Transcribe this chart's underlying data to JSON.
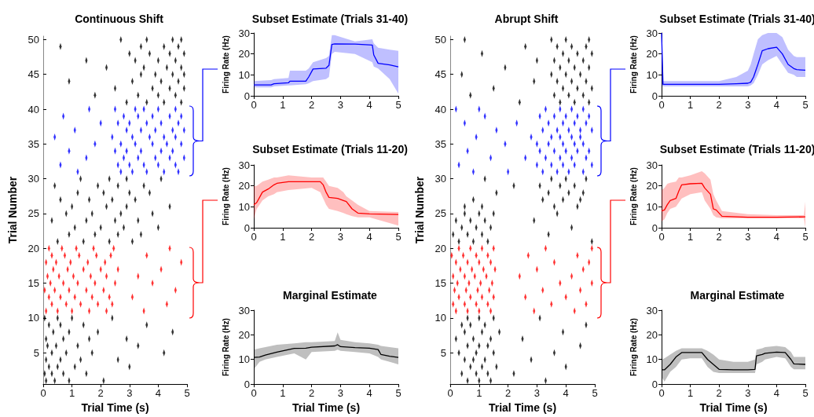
{
  "chart_data": [
    {
      "type": "scatter",
      "title": "Continuous Shift",
      "marker": "diamond",
      "xlabel": "Trial Time (s)",
      "ylabel": "Trial Number",
      "xlim": [
        0,
        5
      ],
      "xticks": [
        0,
        1,
        2,
        3,
        4,
        5
      ],
      "ylim": [
        0.5,
        50.5
      ],
      "yticks": [
        5,
        10,
        15,
        20,
        25,
        30,
        35,
        40,
        45,
        50
      ],
      "series": [
        {
          "color": "#000000",
          "x": [
            0.1,
            0.4,
            0.9,
            2.1,
            0.05,
            0.3,
            0.7,
            1.5,
            0.2,
            0.5,
            1.1,
            3.0,
            0.1,
            0.6,
            1.3,
            2.6,
            0.3,
            0.8,
            1.7,
            4.2,
            0.15,
            0.45,
            1.2,
            3.3,
            0.1,
            0.7,
            1.6,
            2.9,
            0.35,
            0.9,
            1.9,
            4.5,
            0.2,
            0.6,
            1.4,
            3.6,
            0.05,
            0.5,
            1.0,
            2.4,
            0.5,
            1.4,
            2.3,
            3.1,
            0.9,
            1.8,
            2.6,
            3.4,
            1.1,
            2.0,
            2.8,
            4.0,
            0.3,
            1.5,
            2.5,
            3.3,
            0.8,
            1.7,
            2.7,
            3.8,
            1.0,
            2.2,
            2.9,
            4.4,
            0.6,
            1.6,
            2.4,
            3.2,
            1.2,
            2.1,
            3.0,
            3.7,
            0.4,
            1.9,
            2.6,
            3.5,
            1.3,
            2.3,
            2.9,
            4.1,
            2.9,
            3.6,
            4.2,
            4.8,
            1.8,
            3.3,
            4.0,
            4.6,
            2.5,
            3.8,
            4.4,
            4.9,
            0.9,
            3.1,
            4.1,
            4.7,
            3.4,
            3.9,
            4.5,
            4.9,
            2.2,
            3.5,
            4.3,
            4.8,
            1.5,
            3.2,
            4.0,
            4.6,
            3.0,
            3.7,
            4.4,
            4.9,
            0.6,
            3.4,
            4.2,
            4.7,
            2.7,
            3.6,
            4.5,
            4.8
          ],
          "values": [
            1,
            1,
            1,
            1,
            2,
            2,
            2,
            2,
            3,
            3,
            3,
            3,
            4,
            4,
            4,
            4,
            5,
            5,
            5,
            5,
            6,
            6,
            6,
            6,
            7,
            7,
            7,
            7,
            8,
            8,
            8,
            8,
            9,
            9,
            9,
            9,
            10,
            10,
            10,
            10,
            21,
            21,
            21,
            21,
            22,
            22,
            22,
            22,
            23,
            23,
            23,
            23,
            24,
            24,
            24,
            24,
            25,
            25,
            25,
            25,
            26,
            26,
            26,
            26,
            27,
            27,
            27,
            27,
            28,
            28,
            28,
            28,
            29,
            29,
            29,
            29,
            30,
            30,
            30,
            30,
            41,
            41,
            41,
            41,
            42,
            42,
            42,
            42,
            43,
            43,
            43,
            43,
            44,
            44,
            44,
            44,
            45,
            45,
            45,
            45,
            46,
            46,
            46,
            46,
            47,
            47,
            47,
            47,
            48,
            48,
            48,
            48,
            49,
            49,
            49,
            49,
            50,
            50,
            50,
            50
          ]
        },
        {
          "color": "#0000ff",
          "x": [
            1.2,
            2.7,
            3.1,
            3.6,
            4.2,
            4.7,
            0.6,
            2.6,
            3.0,
            3.5,
            4.0,
            4.6,
            1.5,
            2.8,
            3.3,
            3.9,
            4.4,
            4.9,
            0.9,
            2.5,
            2.9,
            3.4,
            4.1,
            4.5,
            1.8,
            2.7,
            3.2,
            3.8,
            4.3,
            4.8,
            0.4,
            2.4,
            3.1,
            3.7,
            4.2,
            4.6,
            1.1,
            2.9,
            3.4,
            3.9,
            4.5,
            4.9,
            2.0,
            2.6,
            3.0,
            3.6,
            4.1,
            4.7,
            0.7,
            2.8,
            3.3,
            3.8,
            4.4,
            4.8,
            1.6,
            2.5,
            3.2,
            3.5,
            4.0,
            4.6
          ],
          "values": [
            31,
            31,
            31,
            31,
            31,
            31,
            32,
            32,
            32,
            32,
            32,
            32,
            33,
            33,
            33,
            33,
            33,
            33,
            34,
            34,
            34,
            34,
            34,
            34,
            35,
            35,
            35,
            35,
            35,
            35,
            36,
            36,
            36,
            36,
            36,
            36,
            37,
            37,
            37,
            37,
            37,
            37,
            38,
            38,
            38,
            38,
            38,
            38,
            39,
            39,
            39,
            39,
            39,
            39,
            40,
            40,
            40,
            40,
            40,
            40
          ]
        },
        {
          "color": "#ff0000",
          "x": [
            0.1,
            0.5,
            1.0,
            1.6,
            2.2,
            3.5,
            0.3,
            0.8,
            1.3,
            1.9,
            2.4,
            4.3,
            0.2,
            0.6,
            1.1,
            1.7,
            2.3,
            3.1,
            0.05,
            0.4,
            0.9,
            1.5,
            2.1,
            4.6,
            0.25,
            0.7,
            1.2,
            1.8,
            2.5,
            3.8,
            0.15,
            0.55,
            1.05,
            1.65,
            2.2,
            3.3,
            0.35,
            0.85,
            1.4,
            2.0,
            2.6,
            4.1,
            0.1,
            0.45,
            0.95,
            1.55,
            2.15,
            4.8,
            0.3,
            0.75,
            1.25,
            1.85,
            2.35,
            3.6,
            0.2,
            0.65,
            1.15,
            1.75,
            2.45,
            4.4
          ],
          "values": [
            11,
            11,
            11,
            11,
            11,
            11,
            12,
            12,
            12,
            12,
            12,
            12,
            13,
            13,
            13,
            13,
            13,
            13,
            14,
            14,
            14,
            14,
            14,
            14,
            15,
            15,
            15,
            15,
            15,
            15,
            16,
            16,
            16,
            16,
            16,
            16,
            17,
            17,
            17,
            17,
            17,
            17,
            18,
            18,
            18,
            18,
            18,
            18,
            19,
            19,
            19,
            19,
            19,
            19,
            20,
            20,
            20,
            20,
            20,
            20
          ]
        }
      ]
    },
    {
      "type": "line",
      "title": "Subset Estimate (Trials 31-40)",
      "ylabel": "Firing Rate (Hz)",
      "marker": "none",
      "xlim": [
        0,
        5
      ],
      "xticks": [
        0,
        1,
        2,
        3,
        4,
        5
      ],
      "ylim": [
        0,
        30
      ],
      "yticks": [
        0,
        10,
        20,
        30
      ],
      "series": [
        {
          "color": "#0000ff",
          "x": [
            0,
            0.6,
            0.7,
            1.2,
            1.25,
            1.8,
            1.9,
            2.05,
            2.5,
            2.6,
            2.7,
            2.8,
            3.5,
            4.1,
            4.15,
            4.3,
            4.7,
            5
          ],
          "values": [
            5.2,
            5.2,
            5.8,
            6.2,
            7,
            7,
            9,
            12.8,
            13.2,
            14.5,
            24.5,
            24.8,
            24.7,
            24.2,
            19.5,
            15.5,
            14.8,
            13.8
          ],
          "lower": [
            4,
            4,
            4.5,
            5,
            5,
            5.5,
            6,
            7,
            8,
            9,
            20,
            21,
            20,
            16,
            14,
            13,
            8,
            1
          ],
          "upper": [
            7,
            7.5,
            8,
            8.5,
            12,
            12,
            13,
            16,
            18,
            19,
            29,
            29,
            26,
            27,
            25,
            23,
            22,
            21.5
          ]
        }
      ]
    },
    {
      "type": "line",
      "title": "Subset Estimate (Trials 11-20)",
      "ylabel": "Firing Rate (Hz)",
      "marker": "none",
      "xlim": [
        0,
        5
      ],
      "xticks": [
        0,
        1,
        2,
        3,
        4,
        5
      ],
      "ylim": [
        0,
        30
      ],
      "yticks": [
        0,
        10,
        20,
        30
      ],
      "series": [
        {
          "color": "#ff0000",
          "x": [
            0,
            0.1,
            0.2,
            0.3,
            0.5,
            0.7,
            0.8,
            1.2,
            2,
            2.3,
            2.4,
            2.5,
            2.6,
            2.9,
            3.1,
            3.2,
            3.4,
            3.6,
            4,
            5
          ],
          "values": [
            11,
            12,
            14.5,
            17,
            18.5,
            20.5,
            21.2,
            22,
            22,
            22,
            20.5,
            17,
            14.5,
            14,
            13,
            12.5,
            9,
            7,
            6.6,
            6.3
          ],
          "lower": [
            4,
            9,
            11,
            13,
            15,
            16,
            17,
            18,
            19,
            17,
            14,
            11,
            9,
            8,
            7,
            6.5,
            5.5,
            5,
            5,
            1
          ],
          "upper": [
            20,
            20,
            21,
            22,
            23,
            24,
            24,
            25,
            24,
            24,
            24,
            22,
            20,
            19,
            17,
            15,
            13,
            11,
            8,
            7.5
          ]
        }
      ]
    },
    {
      "type": "line",
      "title": "Marginal Estimate",
      "xlabel": "Trial Time (s)",
      "ylabel": "Firing Rate (Hz)",
      "marker": "none",
      "xlim": [
        0,
        5
      ],
      "xticks": [
        0,
        1,
        2,
        3,
        4,
        5
      ],
      "ylim": [
        0,
        30
      ],
      "yticks": [
        0,
        10,
        20,
        30
      ],
      "series": [
        {
          "color": "#000000",
          "x": [
            0,
            0.2,
            0.4,
            0.8,
            1.4,
            1.8,
            2,
            2.8,
            2.9,
            3,
            3.5,
            4,
            4.3,
            4.4,
            4.7,
            5
          ],
          "values": [
            10.8,
            11,
            11.8,
            13,
            14.5,
            14.6,
            15,
            15.5,
            16,
            15.2,
            14.8,
            14.6,
            14,
            12,
            11.3,
            10.8
          ],
          "lower": [
            6,
            9,
            10,
            11,
            12.5,
            10,
            13,
            13.5,
            14,
            13.5,
            13,
            12.5,
            11,
            10,
            9,
            8
          ],
          "upper": [
            14,
            14.5,
            15,
            16,
            16.5,
            17,
            17,
            17.5,
            21,
            18,
            17,
            16.5,
            16,
            15.5,
            15,
            14.5
          ]
        }
      ]
    },
    {
      "type": "scatter",
      "title": "Abrupt Shift",
      "marker": "diamond",
      "xlabel": "Trial Time (s)",
      "ylabel": "Trial Number",
      "xlim": [
        0,
        5
      ],
      "xticks": [
        0,
        1,
        2,
        3,
        4,
        5
      ],
      "ylim": [
        0.5,
        50.5
      ],
      "yticks": [
        5,
        10,
        15,
        20,
        25,
        30,
        35,
        40,
        45,
        50
      ],
      "series": [
        {
          "color": "#000000",
          "x": [
            0.6,
            1.0,
            1.4,
            3.3,
            0.4,
            0.9,
            1.3,
            2.2,
            0.7,
            1.1,
            1.6,
            4.0,
            0.5,
            0.8,
            1.2,
            2.8,
            0.3,
            0.9,
            1.5,
            3.6,
            0.6,
            1.0,
            1.3,
            4.5,
            0.2,
            0.8,
            1.4,
            2.5,
            0.5,
            1.1,
            1.7,
            3.9,
            0.4,
            0.7,
            1.2,
            4.7,
            0.6,
            1.0,
            1.5,
            3.1,
            0.3,
            0.8,
            1.3,
            4.9,
            0.1,
            0.6,
            1.1,
            3.4,
            0.4,
            0.9,
            1.4,
            4.2,
            0.2,
            0.7,
            1.2,
            2.9,
            0.5,
            1.0,
            1.5,
            3.7,
            0.5,
            1.1,
            3.6,
            4.4,
            0.8,
            3.2,
            3.9,
            4.5,
            1.6,
            3.4,
            4.1,
            4.6,
            2.2,
            3.1,
            3.8,
            4.3,
            1.2,
            3.5,
            4.0,
            4.7,
            2.4,
            3.8,
            4.3,
            4.8,
            0.7,
            3.6,
            4.1,
            4.6,
            1.5,
            3.9,
            4.4,
            4.9,
            2.9,
            3.7,
            4.2,
            4.7,
            0.4,
            3.5,
            4.0,
            4.5,
            1.9,
            3.8,
            4.3,
            4.8,
            3.0,
            3.6,
            4.1,
            4.6,
            1.1,
            3.9,
            4.4,
            4.9,
            2.6,
            3.7,
            4.2,
            4.7,
            0.5,
            3.5,
            4.0,
            4.8
          ],
          "values": [
            1,
            1,
            1,
            1,
            2,
            2,
            2,
            2,
            3,
            3,
            3,
            3,
            4,
            4,
            4,
            4,
            5,
            5,
            5,
            5,
            6,
            6,
            6,
            6,
            7,
            7,
            7,
            7,
            8,
            8,
            8,
            8,
            9,
            9,
            9,
            9,
            10,
            10,
            10,
            10,
            21,
            21,
            21,
            21,
            22,
            22,
            22,
            22,
            23,
            23,
            23,
            23,
            24,
            24,
            24,
            24,
            25,
            25,
            25,
            25,
            26,
            26,
            26,
            26,
            27,
            27,
            27,
            27,
            28,
            28,
            28,
            28,
            29,
            29,
            29,
            29,
            30,
            30,
            30,
            30,
            41,
            41,
            41,
            41,
            42,
            42,
            42,
            42,
            43,
            43,
            43,
            43,
            44,
            44,
            44,
            44,
            45,
            45,
            45,
            45,
            46,
            46,
            46,
            46,
            47,
            47,
            47,
            47,
            48,
            48,
            48,
            48,
            49,
            49,
            49,
            49,
            50,
            50,
            50,
            50
          ]
        },
        {
          "color": "#0000ff",
          "x": [
            0.8,
            2.0,
            3.2,
            3.7,
            4.1,
            4.6,
            0.3,
            3.0,
            3.5,
            3.9,
            4.3,
            4.9,
            1.4,
            2.6,
            3.3,
            3.8,
            4.2,
            4.7,
            0.6,
            3.1,
            3.6,
            4.0,
            4.4,
            4.8,
            1.9,
            3.0,
            3.4,
            3.9,
            4.3,
            4.6,
            0.9,
            2.8,
            3.5,
            3.8,
            4.2,
            4.5,
            1.6,
            3.2,
            3.7,
            4.1,
            4.5,
            4.9,
            0.5,
            2.3,
            3.4,
            3.9,
            4.3,
            4.7,
            1.2,
            3.1,
            3.6,
            4.0,
            4.4,
            4.8,
            0.2,
            1.0,
            3.3,
            3.8,
            4.2,
            4.6
          ],
          "values": [
            31,
            31,
            31,
            31,
            31,
            31,
            32,
            32,
            32,
            32,
            32,
            32,
            33,
            33,
            33,
            33,
            33,
            33,
            34,
            34,
            34,
            34,
            34,
            34,
            35,
            35,
            35,
            35,
            35,
            35,
            36,
            36,
            36,
            36,
            36,
            36,
            37,
            37,
            37,
            37,
            37,
            37,
            38,
            38,
            38,
            38,
            38,
            38,
            39,
            39,
            39,
            39,
            39,
            39,
            40,
            40,
            40,
            40,
            40,
            40
          ]
        },
        {
          "color": "#ff0000",
          "x": [
            0.2,
            0.6,
            1.0,
            1.4,
            2.9,
            4.3,
            0.1,
            0.5,
            0.9,
            1.3,
            3.5,
            4.7,
            0.3,
            0.7,
            1.1,
            1.5,
            2.6,
            4.0,
            0.15,
            0.55,
            0.95,
            1.35,
            3.2,
            4.5,
            0.25,
            0.65,
            1.05,
            1.45,
            3.8,
            4.9,
            0.1,
            0.5,
            0.85,
            1.25,
            2.4,
            4.2,
            0.35,
            0.75,
            1.15,
            1.55,
            3.0,
            4.6,
            0.2,
            0.6,
            1.0,
            1.4,
            3.6,
            4.8,
            0.05,
            0.45,
            0.9,
            1.3,
            2.7,
            4.4,
            0.3,
            0.7,
            1.1,
            1.5,
            3.3,
            4.9
          ],
          "values": [
            11,
            11,
            11,
            11,
            11,
            11,
            12,
            12,
            12,
            12,
            12,
            12,
            13,
            13,
            13,
            13,
            13,
            13,
            14,
            14,
            14,
            14,
            14,
            14,
            15,
            15,
            15,
            15,
            15,
            15,
            16,
            16,
            16,
            16,
            16,
            16,
            17,
            17,
            17,
            17,
            17,
            17,
            18,
            18,
            18,
            18,
            18,
            18,
            19,
            19,
            19,
            19,
            19,
            19,
            20,
            20,
            20,
            20,
            20,
            20
          ]
        }
      ]
    },
    {
      "type": "line",
      "title": "Subset Estimate (Trials 31-40)",
      "ylabel": "Firing Rate (Hz)",
      "marker": "none",
      "xlim": [
        0,
        5
      ],
      "xticks": [
        0,
        1,
        2,
        3,
        4,
        5
      ],
      "ylim": [
        0,
        30
      ],
      "yticks": [
        0,
        10,
        20,
        30
      ],
      "series": [
        {
          "color": "#0000ff",
          "x": [
            0,
            0.05,
            1,
            2,
            2.6,
            3,
            3.1,
            3.2,
            3.35,
            3.5,
            3.7,
            4,
            4.2,
            4.4,
            4.6,
            4.7,
            5
          ],
          "values": [
            30,
            5.5,
            5.5,
            5.5,
            5.8,
            6,
            6.5,
            9,
            15,
            21.5,
            22.5,
            23.2,
            20,
            15,
            13,
            12.5,
            12.2
          ],
          "lower": [
            5,
            4.5,
            4.5,
            4.5,
            4.5,
            4.5,
            5,
            6,
            10,
            15,
            17,
            19,
            15,
            11,
            10,
            9,
            9
          ],
          "upper": [
            30,
            7,
            7,
            7,
            9,
            12,
            15,
            20,
            27,
            29,
            30,
            30,
            28,
            22,
            19,
            18.5,
            18.5
          ]
        }
      ]
    },
    {
      "type": "line",
      "title": "Subset Estimate (Trials 11-20)",
      "ylabel": "Firing Rate (Hz)",
      "marker": "none",
      "xlim": [
        0,
        5
      ],
      "xticks": [
        0,
        1,
        2,
        3,
        4,
        5
      ],
      "ylim": [
        0,
        30
      ],
      "yticks": [
        0,
        10,
        20,
        30
      ],
      "series": [
        {
          "color": "#ff0000",
          "x": [
            0,
            0.1,
            0.2,
            0.3,
            0.5,
            0.6,
            0.7,
            1,
            1.4,
            1.5,
            1.7,
            1.8,
            1.9,
            2.1,
            3,
            4,
            4.95,
            5
          ],
          "values": [
            8,
            8.5,
            11,
            13,
            14,
            17.5,
            20.5,
            21,
            21.2,
            19,
            16,
            9,
            8.5,
            5.5,
            5,
            5,
            5.2,
            5.2
          ],
          "lower": [
            3,
            4,
            7,
            9,
            10,
            12,
            14,
            16,
            17,
            13,
            9,
            6,
            5,
            4.5,
            4.5,
            4.5,
            4.5,
            0
          ],
          "upper": [
            18,
            19,
            21,
            21.5,
            22,
            24,
            24,
            25,
            27,
            26,
            23,
            16,
            13,
            8,
            6.5,
            6,
            6,
            12.5
          ]
        }
      ]
    },
    {
      "type": "line",
      "title": "Marginal Estimate",
      "xlabel": "Trial Time (s)",
      "ylabel": "Firing Rate (Hz)",
      "marker": "none",
      "xlim": [
        0,
        5
      ],
      "xticks": [
        0,
        1,
        2,
        3,
        4,
        5
      ],
      "ylim": [
        0,
        30
      ],
      "yticks": [
        0,
        10,
        20,
        30
      ],
      "series": [
        {
          "color": "#000000",
          "x": [
            0,
            0.1,
            0.3,
            0.5,
            0.7,
            1,
            1.4,
            1.6,
            1.8,
            2,
            2.5,
            3,
            3.25,
            3.3,
            3.5,
            3.6,
            4,
            4.3,
            4.5,
            4.6,
            5
          ],
          "values": [
            5.8,
            5.8,
            8,
            11,
            12.8,
            12.8,
            12.8,
            10,
            8,
            6,
            5.8,
            5.8,
            6,
            11.5,
            12,
            12.5,
            13,
            12.8,
            10,
            8.2,
            8
          ],
          "lower": [
            3,
            1,
            5,
            7,
            10,
            10.5,
            10.5,
            7,
            5,
            4.5,
            4.5,
            4.5,
            4.5,
            8,
            9,
            10,
            11,
            10.5,
            7,
            6,
            6
          ],
          "upper": [
            10,
            10.5,
            12,
            13.5,
            14.5,
            14.5,
            14.5,
            13.5,
            12,
            10,
            9,
            9,
            10,
            14,
            14.5,
            15,
            15.5,
            15,
            13,
            11,
            11
          ]
        }
      ]
    }
  ]
}
